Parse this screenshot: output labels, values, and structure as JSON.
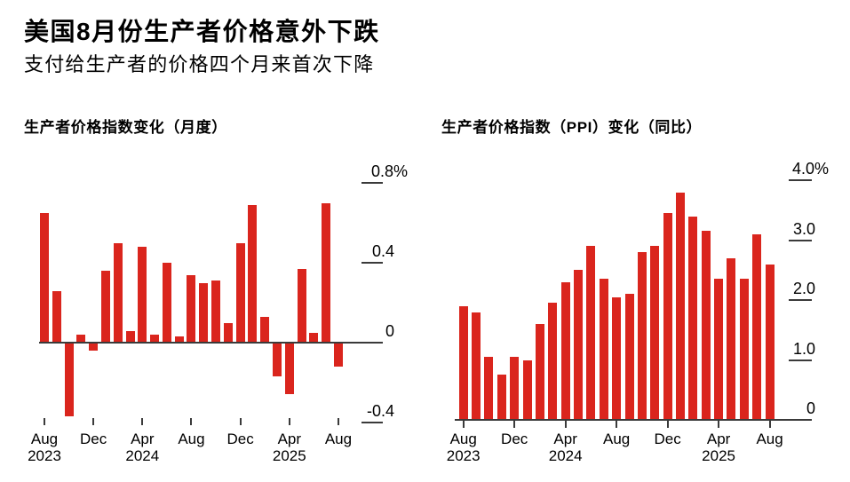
{
  "header": {
    "title": "美国8月份生产者价格意外下跌",
    "subtitle": "支付给生产者的价格四个月来首次下降"
  },
  "colors": {
    "bar": "#da251d",
    "axis": "#3a3a3a",
    "text": "#000000",
    "background": "#ffffff"
  },
  "chart_data": [
    {
      "type": "bar",
      "title": "生产者价格指数变化（月度）",
      "unit": "%",
      "x": [
        "Aug 2023",
        "Sep 2023",
        "Oct 2023",
        "Nov 2023",
        "Dec 2023",
        "Jan 2024",
        "Feb 2024",
        "Mar 2024",
        "Apr 2024",
        "May 2024",
        "Jun 2024",
        "Jul 2024",
        "Aug 2024",
        "Sep 2024",
        "Oct 2024",
        "Nov 2024",
        "Dec 2024",
        "Jan 2025",
        "Feb 2025",
        "Mar 2025",
        "Apr 2025",
        "May 2025",
        "Jun 2025",
        "Jul 2025",
        "Aug 2025"
      ],
      "values": [
        0.65,
        0.26,
        -0.37,
        0.04,
        -0.04,
        0.36,
        0.5,
        0.06,
        0.48,
        0.04,
        0.4,
        0.03,
        0.34,
        0.3,
        0.31,
        0.1,
        0.5,
        0.69,
        0.13,
        -0.17,
        -0.26,
        0.37,
        0.05,
        0.7,
        -0.12
      ],
      "ylim": [
        -0.4,
        0.8
      ],
      "grid": false,
      "legend": "none",
      "yticks": [
        {
          "label": "0.8%",
          "value": 0.8
        },
        {
          "label": "0.4",
          "value": 0.4
        },
        {
          "label": "0",
          "value": 0
        },
        {
          "label": "-0.4",
          "value": -0.4
        }
      ],
      "xticks": [
        {
          "label": "Aug",
          "year": "2023",
          "index": 0
        },
        {
          "label": "Dec",
          "year": "",
          "index": 4
        },
        {
          "label": "Apr",
          "year": "2024",
          "index": 8
        },
        {
          "label": "Aug",
          "year": "",
          "index": 12
        },
        {
          "label": "Dec",
          "year": "",
          "index": 16
        },
        {
          "label": "Apr",
          "year": "2025",
          "index": 20
        },
        {
          "label": "Aug",
          "year": "",
          "index": 24
        }
      ]
    },
    {
      "type": "bar",
      "title": "生产者价格指数（PPI）变化（同比）",
      "unit": "%",
      "x": [
        "Aug 2023",
        "Sep 2023",
        "Oct 2023",
        "Nov 2023",
        "Dec 2023",
        "Jan 2024",
        "Feb 2024",
        "Mar 2024",
        "Apr 2024",
        "May 2024",
        "Jun 2024",
        "Jul 2024",
        "Aug 2024",
        "Sep 2024",
        "Oct 2024",
        "Nov 2024",
        "Dec 2024",
        "Jan 2025",
        "Feb 2025",
        "Mar 2025",
        "Apr 2025",
        "May 2025",
        "Jun 2025",
        "Jul 2025",
        "Aug 2025"
      ],
      "values": [
        1.9,
        1.8,
        1.05,
        0.75,
        1.05,
        1.0,
        1.6,
        1.95,
        2.3,
        2.5,
        2.9,
        2.35,
        2.05,
        2.1,
        2.8,
        2.9,
        3.45,
        3.8,
        3.4,
        3.15,
        2.35,
        2.7,
        2.35,
        3.1,
        2.6
      ],
      "ylim": [
        0,
        4.0
      ],
      "grid": false,
      "legend": "none",
      "yticks": [
        {
          "label": "4.0%",
          "value": 4.0
        },
        {
          "label": "3.0",
          "value": 3.0
        },
        {
          "label": "2.0",
          "value": 2.0
        },
        {
          "label": "1.0",
          "value": 1.0
        },
        {
          "label": "0",
          "value": 0
        }
      ],
      "xticks": [
        {
          "label": "Aug",
          "year": "2023",
          "index": 0
        },
        {
          "label": "Dec",
          "year": "",
          "index": 4
        },
        {
          "label": "Apr",
          "year": "2024",
          "index": 8
        },
        {
          "label": "Aug",
          "year": "",
          "index": 12
        },
        {
          "label": "Dec",
          "year": "",
          "index": 16
        },
        {
          "label": "Apr",
          "year": "2025",
          "index": 20
        },
        {
          "label": "Aug",
          "year": "",
          "index": 24
        }
      ]
    }
  ]
}
